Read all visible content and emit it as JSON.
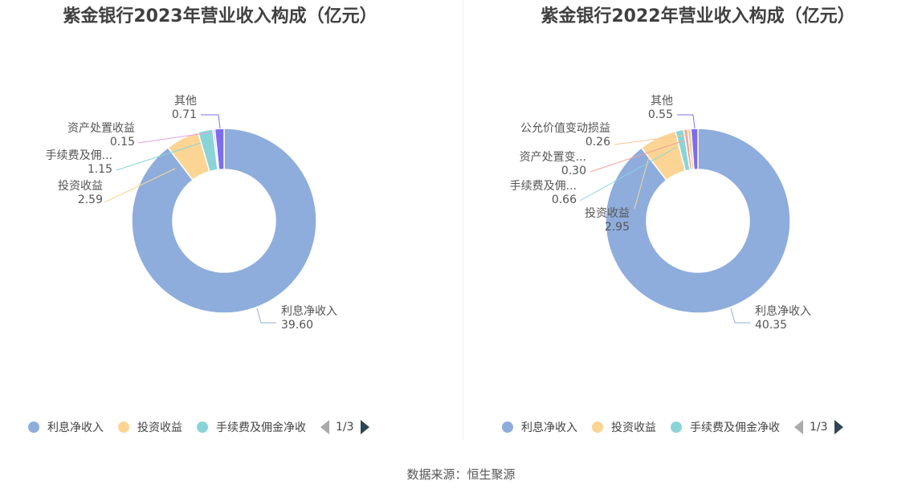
{
  "source": "数据来源：恒生聚源",
  "colors": {
    "利息净收入": "#8eaddc",
    "投资收益": "#fcd594",
    "手续费及佣金净收入": "#8ad4d8",
    "资产处置收益": "#e3a1e4",
    "公允价值变动损益": "#f7c790",
    "其他": "#7b6cf0",
    "资产处置变动": "#f2a196"
  },
  "chart_data": [
    {
      "type": "pie",
      "title": "紫金银行2023年营业收入构成（亿元）",
      "unit": "亿元",
      "slices": [
        {
          "name": "利息净收入",
          "value": 39.6,
          "label": "利息净收入",
          "value_text": "39.60"
        },
        {
          "name": "投资收益",
          "value": 2.59,
          "label": "投资收益",
          "value_text": "2.59"
        },
        {
          "name": "手续费及佣金净收入",
          "value": 1.15,
          "label": "手续费及佣...",
          "value_text": "1.15"
        },
        {
          "name": "资产处置收益",
          "value": 0.15,
          "label": "资产处置收益",
          "value_text": "0.15"
        },
        {
          "name": "其他",
          "value": 0.71,
          "label": "其他",
          "value_text": "0.71"
        }
      ],
      "legend": {
        "items": [
          "利息净收入",
          "投资收益",
          "手续费及佣金净收"
        ],
        "page": "1/3"
      }
    },
    {
      "type": "pie",
      "title": "紫金银行2022年营业收入构成（亿元）",
      "unit": "亿元",
      "slices": [
        {
          "name": "利息净收入",
          "value": 40.35,
          "label": "利息净收入",
          "value_text": "40.35"
        },
        {
          "name": "投资收益",
          "value": 2.95,
          "label": "投资收益",
          "value_text": "2.95"
        },
        {
          "name": "手续费及佣金净收入",
          "value": 0.66,
          "label": "手续费及佣...",
          "value_text": "0.66"
        },
        {
          "name": "资产处置变动",
          "value": 0.3,
          "label": "资产处置变...",
          "value_text": "0.30"
        },
        {
          "name": "公允价值变动损益",
          "value": 0.26,
          "label": "公允价值变动损益",
          "value_text": "0.26"
        },
        {
          "name": "其他",
          "value": 0.55,
          "label": "其他",
          "value_text": "0.55"
        }
      ],
      "legend": {
        "items": [
          "利息净收入",
          "投资收益",
          "手续费及佣金净收"
        ],
        "page": "1/3"
      }
    }
  ]
}
